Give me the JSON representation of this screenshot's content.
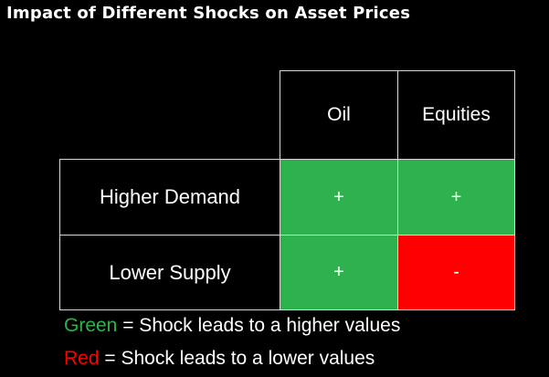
{
  "title": "Impact of Different Shocks on Asset Prices",
  "colors": {
    "background": "#000000",
    "positive": "#2db24e",
    "negative": "#ff0000",
    "grid": "#d9d9d9",
    "text": "#ffffff"
  },
  "table": {
    "columns": [
      "Oil",
      "Equities"
    ],
    "rows": [
      {
        "label": "Higher Demand",
        "values": [
          "+",
          "+"
        ],
        "effects": [
          "positive",
          "positive"
        ]
      },
      {
        "label": "Lower Supply",
        "values": [
          "+",
          "-"
        ],
        "effects": [
          "positive",
          "negative"
        ]
      }
    ]
  },
  "legend": [
    {
      "color_word": "Green",
      "text": " = Shock leads to a higher values",
      "effect": "positive"
    },
    {
      "color_word": "Red",
      "text": " = Shock leads to a lower values",
      "effect": "negative"
    }
  ]
}
